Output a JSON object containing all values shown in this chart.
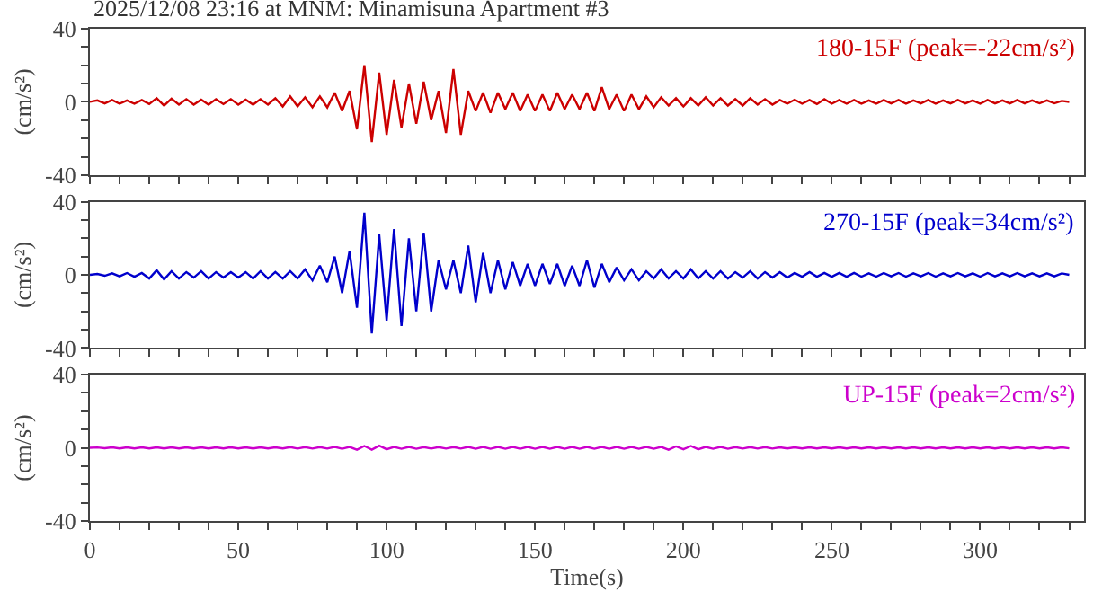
{
  "chart_data": [
    {
      "type": "line",
      "title": "2025/12/08 23:16 at MNM: Minamisuna Apartment #3",
      "ylabel": "(cm/s²)",
      "tick_labels": "y",
      "legend": false,
      "grid": false,
      "marker": "none",
      "line_style": "solid",
      "xlim": [
        0,
        335
      ],
      "ylim": [
        -40,
        40
      ],
      "xticks": [
        0,
        {
          "value": 10,
          "label": null
        },
        {
          "value": 20,
          "label": null
        },
        {
          "value": 30,
          "label": null
        },
        {
          "value": 40,
          "label": null
        },
        50,
        {
          "value": 60,
          "label": null
        },
        {
          "value": 70,
          "label": null
        },
        {
          "value": 80,
          "label": null
        },
        {
          "value": 90,
          "label": null
        },
        100,
        {
          "value": 110,
          "label": null
        },
        {
          "value": 120,
          "label": null
        },
        {
          "value": 130,
          "label": null
        },
        {
          "value": 140,
          "label": null
        },
        150,
        {
          "value": 160,
          "label": null
        },
        {
          "value": 170,
          "label": null
        },
        {
          "value": 180,
          "label": null
        },
        {
          "value": 190,
          "label": null
        },
        200,
        {
          "value": 210,
          "label": null
        },
        {
          "value": 220,
          "label": null
        },
        {
          "value": 230,
          "label": null
        },
        {
          "value": 240,
          "label": null
        },
        250,
        {
          "value": 260,
          "label": null
        },
        {
          "value": 270,
          "label": null
        },
        {
          "value": 280,
          "label": null
        },
        {
          "value": 290,
          "label": null
        },
        300,
        {
          "value": 310,
          "label": null
        },
        {
          "value": 320,
          "label": null
        },
        {
          "value": 330,
          "label": null
        }
      ],
      "yticks": [
        -40,
        {
          "value": -30,
          "label": null
        },
        {
          "value": -20,
          "label": null
        },
        {
          "value": -10,
          "label": null
        },
        0,
        {
          "value": 10,
          "label": null
        },
        {
          "value": 20,
          "label": null
        },
        {
          "value": 30,
          "label": null
        },
        40
      ],
      "x": [
        0,
        2.5,
        5,
        7.5,
        10,
        12.5,
        15,
        17.5,
        20,
        22.5,
        25,
        27.5,
        30,
        32.5,
        35,
        37.5,
        40,
        42.5,
        45,
        47.5,
        50,
        52.5,
        55,
        57.5,
        60,
        62.5,
        65,
        67.5,
        70,
        72.5,
        75,
        77.5,
        80,
        82.5,
        85,
        87.5,
        90,
        92.5,
        95,
        97.5,
        100,
        102.5,
        105,
        107.5,
        110,
        112.5,
        115,
        117.5,
        120,
        122.5,
        125,
        127.5,
        130,
        132.5,
        135,
        137.5,
        140,
        142.5,
        145,
        147.5,
        150,
        152.5,
        155,
        157.5,
        160,
        162.5,
        165,
        167.5,
        170,
        172.5,
        175,
        177.5,
        180,
        182.5,
        185,
        187.5,
        190,
        192.5,
        195,
        197.5,
        200,
        202.5,
        205,
        207.5,
        210,
        212.5,
        215,
        217.5,
        220,
        222.5,
        225,
        227.5,
        230,
        232.5,
        235,
        237.5,
        240,
        242.5,
        245,
        247.5,
        250,
        252.5,
        255,
        257.5,
        260,
        262.5,
        265,
        267.5,
        270,
        272.5,
        275,
        277.5,
        280,
        282.5,
        285,
        287.5,
        290,
        292.5,
        295,
        297.5,
        300,
        302.5,
        305,
        307.5,
        310,
        312.5,
        315,
        317.5,
        320,
        322.5,
        325,
        327.5,
        330
      ],
      "series": [
        {
          "name": "180-15F (peak=-22cm/s²)",
          "color": "#cc0000",
          "values": [
            0,
            0.8,
            -0.8,
            1,
            -1,
            0.8,
            -1,
            1,
            -1.2,
            2,
            -2,
            1.8,
            -1.5,
            1.5,
            -1.5,
            1.2,
            -1.5,
            1.5,
            -1.2,
            1.5,
            -1.5,
            1.2,
            -1.5,
            1.5,
            -1.5,
            2,
            -2.5,
            3,
            -2.5,
            2.5,
            -3,
            3,
            -3,
            5,
            -5,
            6,
            -15,
            20,
            -22,
            16,
            -18,
            12,
            -14,
            10,
            -12,
            11,
            -10,
            6,
            -17,
            18,
            -18,
            6,
            -5,
            5,
            -6,
            5,
            -4,
            5,
            -5,
            4,
            -5,
            4,
            -5,
            5,
            -4,
            4,
            -4,
            5,
            -5,
            8,
            -4,
            4,
            -5,
            4,
            -4,
            3,
            -3,
            2.5,
            -2,
            2,
            -2.5,
            2,
            -2,
            2.5,
            -2,
            2,
            -2,
            1.5,
            -2,
            2,
            -1.5,
            1.5,
            -1.5,
            1,
            -1,
            1.2,
            -1,
            1,
            -1.2,
            1.5,
            -1,
            1,
            -1,
            1,
            -1,
            0.8,
            -1,
            1,
            -0.8,
            1,
            -1,
            0.8,
            -0.8,
            1,
            -1,
            0.8,
            -0.8,
            1,
            -0.8,
            0.8,
            -1,
            1,
            -0.8,
            0.8,
            -0.8,
            1,
            -0.8,
            0.8,
            -0.8,
            0.8,
            -0.8,
            0.5,
            0
          ]
        }
      ]
    },
    {
      "type": "line",
      "ylabel": "(cm/s²)",
      "tick_labels": "y",
      "legend": false,
      "grid": false,
      "marker": "none",
      "line_style": "solid",
      "xlim": [
        0,
        335
      ],
      "ylim": [
        -40,
        40
      ],
      "xticks": [
        0,
        {
          "value": 10,
          "label": null
        },
        {
          "value": 20,
          "label": null
        },
        {
          "value": 30,
          "label": null
        },
        {
          "value": 40,
          "label": null
        },
        50,
        {
          "value": 60,
          "label": null
        },
        {
          "value": 70,
          "label": null
        },
        {
          "value": 80,
          "label": null
        },
        {
          "value": 90,
          "label": null
        },
        100,
        {
          "value": 110,
          "label": null
        },
        {
          "value": 120,
          "label": null
        },
        {
          "value": 130,
          "label": null
        },
        {
          "value": 140,
          "label": null
        },
        150,
        {
          "value": 160,
          "label": null
        },
        {
          "value": 170,
          "label": null
        },
        {
          "value": 180,
          "label": null
        },
        {
          "value": 190,
          "label": null
        },
        200,
        {
          "value": 210,
          "label": null
        },
        {
          "value": 220,
          "label": null
        },
        {
          "value": 230,
          "label": null
        },
        {
          "value": 240,
          "label": null
        },
        250,
        {
          "value": 260,
          "label": null
        },
        {
          "value": 270,
          "label": null
        },
        {
          "value": 280,
          "label": null
        },
        {
          "value": 290,
          "label": null
        },
        300,
        {
          "value": 310,
          "label": null
        },
        {
          "value": 320,
          "label": null
        },
        {
          "value": 330,
          "label": null
        }
      ],
      "yticks": [
        -40,
        {
          "value": -30,
          "label": null
        },
        {
          "value": -20,
          "label": null
        },
        {
          "value": -10,
          "label": null
        },
        0,
        {
          "value": 10,
          "label": null
        },
        {
          "value": 20,
          "label": null
        },
        {
          "value": 30,
          "label": null
        },
        40
      ],
      "x": [
        0,
        2.5,
        5,
        7.5,
        10,
        12.5,
        15,
        17.5,
        20,
        22.5,
        25,
        27.5,
        30,
        32.5,
        35,
        37.5,
        40,
        42.5,
        45,
        47.5,
        50,
        52.5,
        55,
        57.5,
        60,
        62.5,
        65,
        67.5,
        70,
        72.5,
        75,
        77.5,
        80,
        82.5,
        85,
        87.5,
        90,
        92.5,
        95,
        97.5,
        100,
        102.5,
        105,
        107.5,
        110,
        112.5,
        115,
        117.5,
        120,
        122.5,
        125,
        127.5,
        130,
        132.5,
        135,
        137.5,
        140,
        142.5,
        145,
        147.5,
        150,
        152.5,
        155,
        157.5,
        160,
        162.5,
        165,
        167.5,
        170,
        172.5,
        175,
        177.5,
        180,
        182.5,
        185,
        187.5,
        190,
        192.5,
        195,
        197.5,
        200,
        202.5,
        205,
        207.5,
        210,
        212.5,
        215,
        217.5,
        220,
        222.5,
        225,
        227.5,
        230,
        232.5,
        235,
        237.5,
        240,
        242.5,
        245,
        247.5,
        250,
        252.5,
        255,
        257.5,
        260,
        262.5,
        265,
        267.5,
        270,
        272.5,
        275,
        277.5,
        280,
        282.5,
        285,
        287.5,
        290,
        292.5,
        295,
        297.5,
        300,
        302.5,
        305,
        307.5,
        310,
        312.5,
        315,
        317.5,
        320,
        322.5,
        325,
        327.5,
        330
      ],
      "series": [
        {
          "name": "270-15F (peak=34cm/s²)",
          "color": "#0000cc",
          "values": [
            0,
            0.5,
            -0.5,
            0.8,
            -0.8,
            1,
            -1,
            1,
            -2,
            2.5,
            -2.5,
            2,
            -2,
            1.5,
            -1.5,
            2,
            -2,
            1.5,
            -1.5,
            1.5,
            -1.5,
            1.5,
            -2,
            2,
            -2,
            1.5,
            -2,
            2,
            -2,
            3,
            -3,
            5,
            -4,
            10,
            -10,
            13,
            -18,
            34,
            -32,
            22,
            -25,
            25,
            -28,
            20,
            -20,
            23,
            -20,
            8,
            -8,
            8,
            -10,
            16,
            -15,
            12,
            -10,
            8,
            -8,
            7,
            -6,
            6,
            -6,
            6,
            -5,
            6,
            -6,
            5,
            -6,
            8,
            -7,
            6,
            -4,
            4,
            -3,
            3,
            -3,
            2,
            -2,
            3,
            -2,
            2,
            -2,
            3,
            -2,
            2,
            -2,
            2,
            -2,
            1.5,
            -1.5,
            2,
            -2,
            1.5,
            -1.5,
            1.5,
            -1.5,
            1,
            -1,
            1.5,
            -1,
            1,
            -1,
            1,
            -1,
            1,
            -1,
            0.8,
            -1,
            1,
            -0.8,
            1,
            -1,
            0.8,
            -0.8,
            1,
            -1,
            0.8,
            -0.8,
            1,
            -0.8,
            0.8,
            -1,
            1,
            -0.8,
            0.8,
            -0.8,
            1,
            -0.8,
            0.8,
            -0.8,
            0.8,
            -0.8,
            0.8,
            0
          ]
        }
      ]
    },
    {
      "type": "line",
      "ylabel": "(cm/s²)",
      "xlabel": "Time(s)",
      "legend": false,
      "grid": false,
      "marker": "none",
      "line_style": "solid",
      "xlim": [
        0,
        335
      ],
      "ylim": [
        -40,
        40
      ],
      "xticks": [
        0,
        {
          "value": 10,
          "label": null
        },
        {
          "value": 20,
          "label": null
        },
        {
          "value": 30,
          "label": null
        },
        {
          "value": 40,
          "label": null
        },
        50,
        {
          "value": 60,
          "label": null
        },
        {
          "value": 70,
          "label": null
        },
        {
          "value": 80,
          "label": null
        },
        {
          "value": 90,
          "label": null
        },
        100,
        {
          "value": 110,
          "label": null
        },
        {
          "value": 120,
          "label": null
        },
        {
          "value": 130,
          "label": null
        },
        {
          "value": 140,
          "label": null
        },
        150,
        {
          "value": 160,
          "label": null
        },
        {
          "value": 170,
          "label": null
        },
        {
          "value": 180,
          "label": null
        },
        {
          "value": 190,
          "label": null
        },
        200,
        {
          "value": 210,
          "label": null
        },
        {
          "value": 220,
          "label": null
        },
        {
          "value": 230,
          "label": null
        },
        {
          "value": 240,
          "label": null
        },
        250,
        {
          "value": 260,
          "label": null
        },
        {
          "value": 270,
          "label": null
        },
        {
          "value": 280,
          "label": null
        },
        {
          "value": 290,
          "label": null
        },
        300,
        {
          "value": 310,
          "label": null
        },
        {
          "value": 320,
          "label": null
        },
        {
          "value": 330,
          "label": null
        }
      ],
      "yticks": [
        -40,
        {
          "value": -30,
          "label": null
        },
        {
          "value": -20,
          "label": null
        },
        {
          "value": -10,
          "label": null
        },
        0,
        {
          "value": 10,
          "label": null
        },
        {
          "value": 20,
          "label": null
        },
        {
          "value": 30,
          "label": null
        },
        40
      ],
      "x": [
        0,
        2.5,
        5,
        7.5,
        10,
        12.5,
        15,
        17.5,
        20,
        22.5,
        25,
        27.5,
        30,
        32.5,
        35,
        37.5,
        40,
        42.5,
        45,
        47.5,
        50,
        52.5,
        55,
        57.5,
        60,
        62.5,
        65,
        67.5,
        70,
        72.5,
        75,
        77.5,
        80,
        82.5,
        85,
        87.5,
        90,
        92.5,
        95,
        97.5,
        100,
        102.5,
        105,
        107.5,
        110,
        112.5,
        115,
        117.5,
        120,
        122.5,
        125,
        127.5,
        130,
        132.5,
        135,
        137.5,
        140,
        142.5,
        145,
        147.5,
        150,
        152.5,
        155,
        157.5,
        160,
        162.5,
        165,
        167.5,
        170,
        172.5,
        175,
        177.5,
        180,
        182.5,
        185,
        187.5,
        190,
        192.5,
        195,
        197.5,
        200,
        202.5,
        205,
        207.5,
        210,
        212.5,
        215,
        217.5,
        220,
        222.5,
        225,
        227.5,
        230,
        232.5,
        235,
        237.5,
        240,
        242.5,
        245,
        247.5,
        250,
        252.5,
        255,
        257.5,
        260,
        262.5,
        265,
        267.5,
        270,
        272.5,
        275,
        277.5,
        280,
        282.5,
        285,
        287.5,
        290,
        292.5,
        295,
        297.5,
        300,
        302.5,
        305,
        307.5,
        310,
        312.5,
        315,
        317.5,
        320,
        322.5,
        325,
        327.5,
        330
      ],
      "series": [
        {
          "name": "UP-15F (peak=2cm/s²)",
          "color": "#cc00cc",
          "values": [
            0,
            0.2,
            -0.2,
            0.3,
            -0.3,
            0.3,
            -0.3,
            0.3,
            -0.3,
            0.3,
            -0.3,
            0.3,
            -0.3,
            0.3,
            -0.3,
            0.3,
            -0.3,
            0.3,
            -0.3,
            0.3,
            -0.3,
            0.3,
            -0.3,
            0.3,
            -0.3,
            0.3,
            -0.3,
            0.4,
            -0.4,
            0.4,
            -0.4,
            0.4,
            -0.4,
            0.5,
            -0.5,
            0.5,
            -1,
            1,
            -1,
            1.2,
            -0.8,
            0.5,
            -0.5,
            0.5,
            -0.5,
            0.4,
            -0.4,
            0.4,
            -0.4,
            0.4,
            -0.4,
            0.5,
            -0.5,
            0.5,
            -0.5,
            0.5,
            -0.5,
            0.5,
            -0.5,
            0.5,
            -0.5,
            0.5,
            -0.5,
            0.5,
            -0.5,
            0.5,
            -0.5,
            0.5,
            -0.5,
            0.5,
            -0.5,
            0.5,
            -0.5,
            0.5,
            -0.5,
            0.5,
            -0.5,
            0.5,
            -1,
            0.8,
            -0.8,
            1,
            -0.8,
            0.5,
            -0.5,
            0.5,
            -0.5,
            0.4,
            -0.4,
            0.4,
            -0.4,
            0.4,
            -0.4,
            0.3,
            -0.3,
            0.3,
            -0.3,
            0.3,
            -0.3,
            0.3,
            -0.3,
            0.3,
            -0.3,
            0.3,
            -0.3,
            0.3,
            -0.3,
            0.3,
            -0.3,
            0.3,
            -0.3,
            0.3,
            -0.3,
            0.3,
            -0.3,
            0.3,
            -0.3,
            0.3,
            -0.3,
            0.3,
            -0.3,
            0.3,
            -0.3,
            0.3,
            -0.3,
            0.3,
            -0.3,
            0.3,
            -0.3,
            0.3,
            -0.3,
            0.3,
            -0.3
          ]
        }
      ]
    }
  ]
}
